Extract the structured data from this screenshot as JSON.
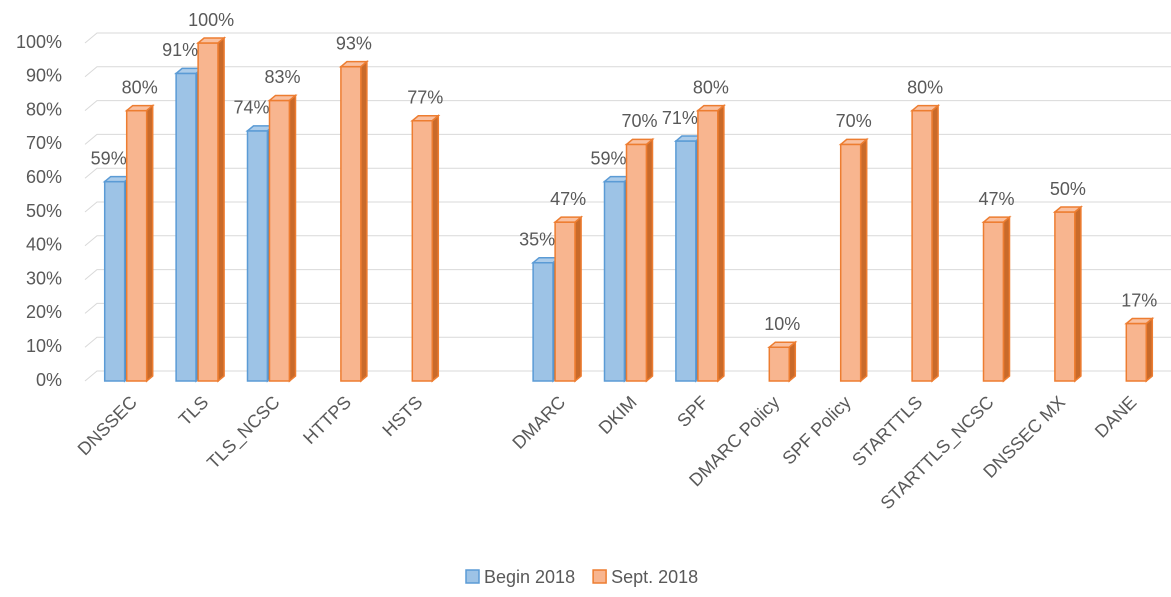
{
  "chart_data": {
    "type": "bar",
    "categories": [
      "DNSSEC",
      "TLS",
      "TLS_NCSC",
      "HTTPS",
      "HSTS",
      null,
      "DMARC",
      "DKIM",
      "SPF",
      "DMARC Policy",
      "SPF Policy",
      "STARTTLS",
      "STARTTLS_NCSC",
      "DNSSEC MX",
      "DANE"
    ],
    "series": [
      {
        "name": "Begin 2018",
        "color": "#9dc3e6",
        "stroke": "#5b9bd5",
        "values": [
          59,
          91,
          74,
          null,
          null,
          null,
          35,
          59,
          71,
          null,
          null,
          null,
          null,
          null,
          null
        ],
        "value_labels": [
          "59%",
          "91%",
          "74%",
          null,
          null,
          null,
          "35%",
          "59%",
          "71%",
          null,
          null,
          null,
          null,
          null,
          null
        ]
      },
      {
        "name": "Sept. 2018",
        "color": "#f8b58f",
        "stroke": "#ed7d31",
        "values": [
          80,
          100,
          83,
          93,
          77,
          null,
          47,
          70,
          80,
          10,
          70,
          80,
          47,
          50,
          17
        ],
        "value_labels": [
          "80%",
          "100%",
          "83%",
          "93%",
          "77%",
          null,
          "47%",
          "70%",
          "80%",
          "10%",
          "70%",
          "80%",
          "47%",
          "50%",
          "17%"
        ]
      }
    ],
    "ylim": [
      0,
      100
    ],
    "yticks": [
      {
        "value": 0,
        "label": "0%"
      },
      {
        "value": 10,
        "label": "10%"
      },
      {
        "value": 20,
        "label": "20%"
      },
      {
        "value": 30,
        "label": "30%"
      },
      {
        "value": 40,
        "label": "40%"
      },
      {
        "value": 50,
        "label": "50%"
      },
      {
        "value": 60,
        "label": "60%"
      },
      {
        "value": 70,
        "label": "70%"
      },
      {
        "value": 80,
        "label": "80%"
      },
      {
        "value": 90,
        "label": "90%"
      },
      {
        "value": 100,
        "label": "100%"
      }
    ],
    "grid": true,
    "legend": "bottom"
  }
}
